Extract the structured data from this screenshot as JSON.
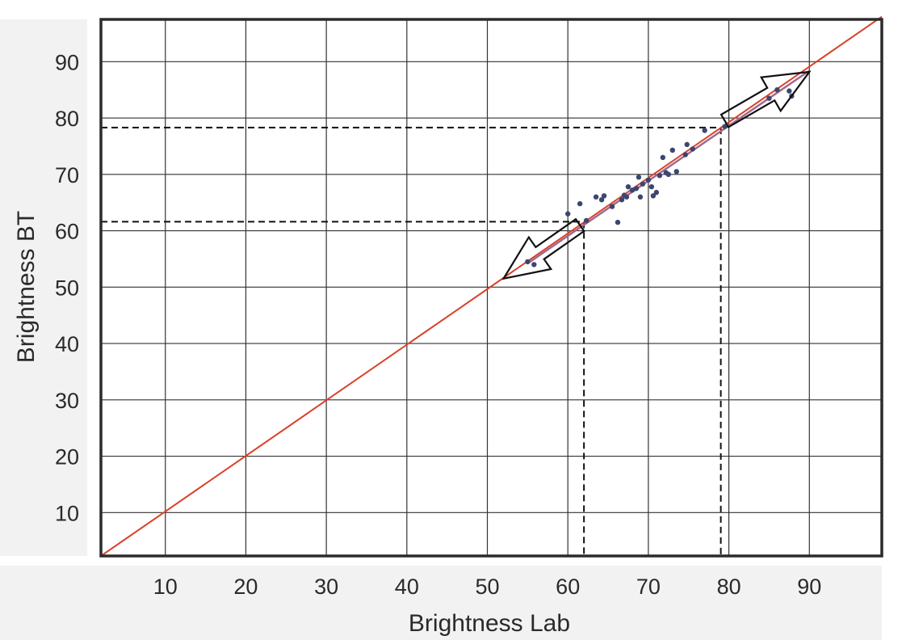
{
  "chart_data": {
    "type": "scatter",
    "title": "",
    "xlabel": "Brightness Lab",
    "ylabel": "Brightness BT",
    "xlim": [
      2,
      99
    ],
    "ylim": [
      2.3,
      97.5
    ],
    "xticks": [
      "10",
      "20",
      "30",
      "40",
      "50",
      "60",
      "70",
      "80",
      "90"
    ],
    "yticks": [
      "10",
      "20",
      "30",
      "40",
      "50",
      "60",
      "70",
      "80",
      "90"
    ],
    "grid": true,
    "legend": "none",
    "colors": {
      "identity_line": "#d9412b",
      "points": "#3c4670",
      "regression_line": "#a06a8c",
      "grid": "#333333",
      "frame": "#2b2b2b",
      "label_band": "#f2f2f2"
    },
    "identity_line": {
      "from": [
        2,
        2.3
      ],
      "to": [
        99,
        98
      ]
    },
    "regression_line": {
      "from": [
        55,
        54.2
      ],
      "to": [
        90,
        88.4
      ]
    },
    "reference_lines": [
      {
        "x": 62,
        "y": 61.6
      },
      {
        "x": 79,
        "y": 78.3
      }
    ],
    "range_arrows": [
      {
        "from": [
          61.5,
          61
        ],
        "to": [
          52,
          51.5
        ]
      },
      {
        "from": [
          79.5,
          79.5
        ],
        "to": [
          90,
          88.2
        ]
      }
    ],
    "points": [
      {
        "x": 55,
        "y": 54.5
      },
      {
        "x": 55.8,
        "y": 54
      },
      {
        "x": 60,
        "y": 63
      },
      {
        "x": 61.5,
        "y": 64.8
      },
      {
        "x": 62.3,
        "y": 61.8
      },
      {
        "x": 63.5,
        "y": 66
      },
      {
        "x": 64.2,
        "y": 65.5
      },
      {
        "x": 64.5,
        "y": 66.2
      },
      {
        "x": 65.5,
        "y": 64.3
      },
      {
        "x": 66.2,
        "y": 61.5
      },
      {
        "x": 66.7,
        "y": 65.5
      },
      {
        "x": 67,
        "y": 66.3
      },
      {
        "x": 67.3,
        "y": 66
      },
      {
        "x": 67.5,
        "y": 67.8
      },
      {
        "x": 68,
        "y": 67.2
      },
      {
        "x": 68.5,
        "y": 67.5
      },
      {
        "x": 68.8,
        "y": 69.5
      },
      {
        "x": 69,
        "y": 66
      },
      {
        "x": 69.3,
        "y": 68.3
      },
      {
        "x": 70,
        "y": 69
      },
      {
        "x": 70.4,
        "y": 67.8
      },
      {
        "x": 70.6,
        "y": 66.2
      },
      {
        "x": 71,
        "y": 66.8
      },
      {
        "x": 71.4,
        "y": 69.8
      },
      {
        "x": 71.8,
        "y": 73
      },
      {
        "x": 72.2,
        "y": 70.3
      },
      {
        "x": 72.5,
        "y": 70
      },
      {
        "x": 73,
        "y": 74.3
      },
      {
        "x": 73.5,
        "y": 70.5
      },
      {
        "x": 74.6,
        "y": 73.5
      },
      {
        "x": 74.8,
        "y": 75.3
      },
      {
        "x": 75.5,
        "y": 74.5
      },
      {
        "x": 77,
        "y": 77.8
      },
      {
        "x": 79.5,
        "y": 78.5
      },
      {
        "x": 85,
        "y": 83.5
      },
      {
        "x": 86,
        "y": 85
      },
      {
        "x": 87.5,
        "y": 84.8
      },
      {
        "x": 87.8,
        "y": 83.9
      }
    ]
  }
}
